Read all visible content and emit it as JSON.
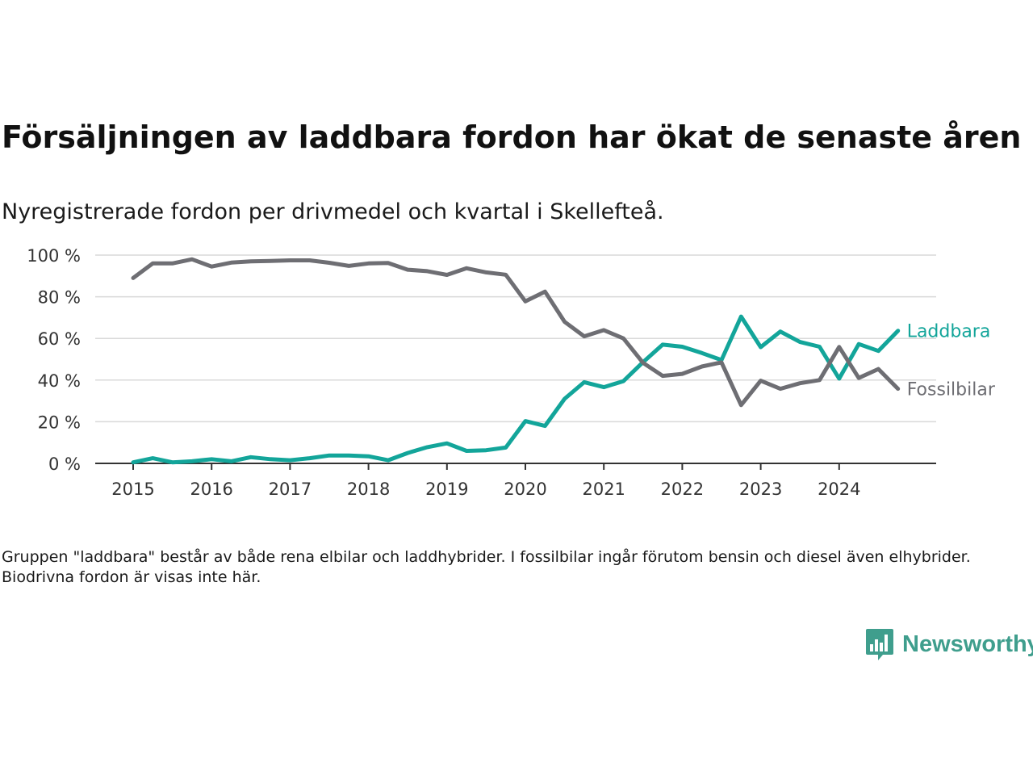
{
  "header": {
    "title": "Försäljningen av laddbara fordon har ökat de senaste åren",
    "subtitle": "Nyregistrerade fordon per drivmedel och kvartal i Skellefteå."
  },
  "footnote": "Gruppen \"laddbara\" består av både rena elbilar och laddhybrider. I fossilbilar ingår förutom bensin och diesel även elhybrider. Biodrivna fordon är visas inte här.",
  "brand": {
    "name": "Newsworthy",
    "icon": "newsworthy-logo-icon",
    "color": "#3f9e8d"
  },
  "chart_data": {
    "type": "line",
    "title": "Försäljningen av laddbara fordon har ökat de senaste åren",
    "subtitle": "Nyregistrerade fordon per drivmedel och kvartal i Skellefteå.",
    "xlabel": "",
    "ylabel": "",
    "x_ticks": [
      "2015",
      "2016",
      "2017",
      "2018",
      "2019",
      "2020",
      "2021",
      "2022",
      "2023",
      "2024"
    ],
    "y_ticks": [
      0,
      20,
      40,
      60,
      80,
      100
    ],
    "y_tick_suffix": " %",
    "ylim": [
      0,
      100
    ],
    "grid": "horizontal",
    "legend": "inline-right",
    "x": [
      "2015-Q1",
      "2015-Q2",
      "2015-Q3",
      "2015-Q4",
      "2016-Q1",
      "2016-Q2",
      "2016-Q3",
      "2016-Q4",
      "2017-Q1",
      "2017-Q2",
      "2017-Q3",
      "2017-Q4",
      "2018-Q1",
      "2018-Q2",
      "2018-Q3",
      "2018-Q4",
      "2019-Q1",
      "2019-Q2",
      "2019-Q3",
      "2019-Q4",
      "2020-Q1",
      "2020-Q2",
      "2020-Q3",
      "2020-Q4",
      "2021-Q1",
      "2021-Q2",
      "2021-Q3",
      "2021-Q4",
      "2022-Q1",
      "2022-Q2",
      "2022-Q3",
      "2022-Q4",
      "2023-Q1",
      "2023-Q2",
      "2023-Q3",
      "2023-Q4",
      "2024-Q1",
      "2024-Q2",
      "2024-Q3",
      "2024-Q4"
    ],
    "series": [
      {
        "name": "Laddbara",
        "color": "#13a59a",
        "values": [
          0.5,
          2.5,
          0.5,
          1,
          2,
          1,
          3,
          2,
          1.5,
          2.5,
          3.8,
          3.8,
          3.4,
          1.5,
          5,
          7.8,
          9.6,
          6,
          6.3,
          7.6,
          20.3,
          18,
          31,
          39,
          36.6,
          39.5,
          48.6,
          57,
          56,
          53,
          49.6,
          70.5,
          55.8,
          63.3,
          58.3,
          56,
          40.7,
          57.3,
          54,
          63.7
        ]
      },
      {
        "name": "Fossilbilar",
        "color": "#6e6e73",
        "values": [
          89,
          96,
          96,
          98,
          94.5,
          96.4,
          97,
          97.2,
          97.5,
          97.5,
          96.3,
          94.8,
          96,
          96.2,
          93,
          92.3,
          90.5,
          93.7,
          91.7,
          90.6,
          77.8,
          82.5,
          68,
          61,
          64,
          60,
          48.3,
          42,
          43,
          46.5,
          48.5,
          28,
          39.7,
          35.8,
          38.5,
          40,
          55.9,
          41,
          45.3,
          35.8
        ]
      }
    ]
  }
}
